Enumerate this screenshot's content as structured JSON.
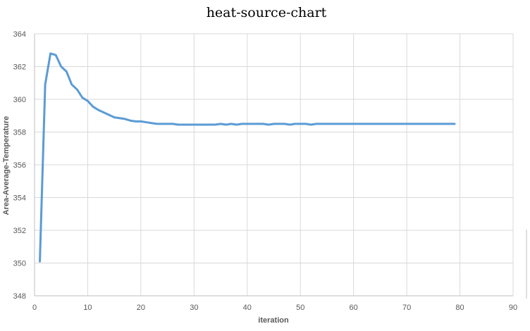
{
  "chart_data": {
    "type": "line",
    "title": "heat-source-chart",
    "xlabel": "iteration",
    "ylabel": "Area-Average-Temperature",
    "xlim": [
      0,
      90
    ],
    "ylim": [
      348,
      364
    ],
    "xticks": [
      0,
      10,
      20,
      30,
      40,
      50,
      60,
      70,
      80,
      90
    ],
    "yticks": [
      348,
      350,
      352,
      354,
      356,
      358,
      360,
      362,
      364
    ],
    "grid": true,
    "legend": "none",
    "series": [
      {
        "color": "#5b9bd5",
        "x": [
          1,
          2,
          3,
          4,
          5,
          6,
          7,
          8,
          9,
          10,
          11,
          12,
          13,
          14,
          15,
          16,
          17,
          18,
          19,
          20,
          21,
          22,
          23,
          24,
          25,
          26,
          27,
          28,
          29,
          30,
          31,
          32,
          33,
          34,
          35,
          36,
          37,
          38,
          39,
          40,
          41,
          42,
          43,
          44,
          45,
          46,
          47,
          48,
          49,
          50,
          51,
          52,
          53,
          54,
          55,
          56,
          57,
          58,
          59,
          60,
          61,
          62,
          63,
          64,
          65,
          66,
          67,
          68,
          69,
          70,
          71,
          72,
          73,
          74,
          75,
          76,
          77,
          78,
          79
        ],
        "y": [
          350.1,
          360.9,
          362.8,
          362.7,
          362.0,
          361.7,
          360.9,
          360.6,
          360.1,
          359.9,
          359.55,
          359.35,
          359.2,
          359.05,
          358.9,
          358.85,
          358.8,
          358.7,
          358.65,
          358.65,
          358.6,
          358.55,
          358.5,
          358.5,
          358.5,
          358.5,
          358.45,
          358.45,
          358.45,
          358.45,
          358.45,
          358.45,
          358.45,
          358.45,
          358.5,
          358.45,
          358.5,
          358.45,
          358.5,
          358.5,
          358.5,
          358.5,
          358.5,
          358.45,
          358.5,
          358.5,
          358.5,
          358.45,
          358.5,
          358.5,
          358.5,
          358.45,
          358.5,
          358.5,
          358.5,
          358.5,
          358.5,
          358.5,
          358.5,
          358.5,
          358.5,
          358.5,
          358.5,
          358.5,
          358.5,
          358.5,
          358.5,
          358.5,
          358.5,
          358.5,
          358.5,
          358.5,
          358.5,
          358.5,
          358.5,
          358.5,
          358.5,
          358.5,
          358.5
        ]
      }
    ]
  }
}
